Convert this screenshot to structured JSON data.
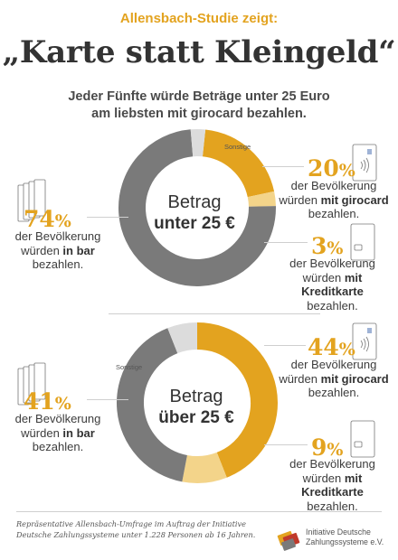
{
  "header": {
    "kicker": "Allensbach-Studie zeigt:",
    "headline": "„Karte statt Kleingeld“",
    "subline_1": "Jeder Fünfte würde Beträge unter 25 Euro",
    "subline_2": "am liebsten mit girocard bezahlen."
  },
  "chart_data": [
    {
      "type": "pie",
      "title": "Betrag unter 25 €",
      "center_line_1": "Betrag",
      "center_line_2": "unter 25 €",
      "slices": [
        {
          "label": "girocard",
          "value": 20,
          "color": "#e3a31f"
        },
        {
          "label": "Kreditkarte",
          "value": 3,
          "color": "#f3d48a"
        },
        {
          "label": "bar",
          "value": 74,
          "color": "#7a7a7a"
        },
        {
          "label": "Sonstige",
          "value": 3,
          "color": "#dcdcdc"
        }
      ],
      "callouts": {
        "girocard": {
          "pct": "20",
          "l1": "der Bevölkerung",
          "l2a": "würden ",
          "l2b": "mit girocard",
          "l3": "bezahlen."
        },
        "kredit": {
          "pct": "3",
          "l1": "der Bevölkerung",
          "l2a": "würden ",
          "l2b": "mit Kreditkarte",
          "l3": "bezahlen."
        },
        "bar": {
          "pct": "74",
          "l1": "der Bevölkerung",
          "l2a": "würden ",
          "l2b": "in bar",
          "l3": "bezahlen."
        }
      },
      "other_label": "Sonstige"
    },
    {
      "type": "pie",
      "title": "Betrag über 25 €",
      "center_line_1": "Betrag",
      "center_line_2": "über 25 €",
      "slices": [
        {
          "label": "girocard",
          "value": 44,
          "color": "#e3a31f"
        },
        {
          "label": "Kreditkarte",
          "value": 9,
          "color": "#f3d48a"
        },
        {
          "label": "bar",
          "value": 41,
          "color": "#7a7a7a"
        },
        {
          "label": "Sonstige",
          "value": 6,
          "color": "#dcdcdc"
        }
      ],
      "callouts": {
        "girocard": {
          "pct": "44",
          "l1": "der Bevölkerung",
          "l2a": "würden ",
          "l2b": "mit girocard",
          "l3": "bezahlen."
        },
        "kredit": {
          "pct": "9",
          "l1": "der Bevölkerung",
          "l2a": "würden ",
          "l2b": "mit Kreditkarte",
          "l3": "bezahlen."
        },
        "bar": {
          "pct": "41",
          "l1": "der Bevölkerung",
          "l2a": "würden ",
          "l2b": "in bar",
          "l3": "bezahlen."
        }
      },
      "other_label": "Sonstige"
    }
  ],
  "footer": {
    "note_1": "Repräsentative Allensbach-Umfrage im Auftrag der Initiative",
    "note_2": "Deutsche Zahlungssysteme unter 1.228 Personen ab 16 Jahren.",
    "logo_1": "Initiative Deutsche",
    "logo_2": "Zahlungssysteme e.V."
  },
  "icons": [
    "banknotes-icon",
    "girocard-contactless-icon",
    "credit-card-icon",
    "logo-cards-icon"
  ],
  "percent_sign": "%",
  "colors": {
    "accent": "#e3a31f",
    "light_accent": "#f3d48a",
    "cash": "#7a7a7a",
    "other": "#dcdcdc"
  }
}
